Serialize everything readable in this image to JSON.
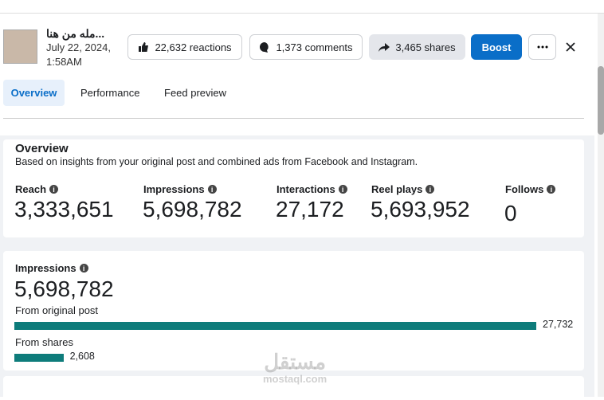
{
  "post": {
    "title": "مله من هنا...",
    "date": "July 22, 2024,",
    "time": "1:58AM"
  },
  "actions": {
    "reactions": "22,632 reactions",
    "comments": "1,373 comments",
    "shares": "3,465 shares",
    "boost": "Boost"
  },
  "tabs": [
    "Overview",
    "Performance",
    "Feed preview"
  ],
  "overview": {
    "title": "Overview",
    "subtitle": "Based on insights from your original post and combined ads from Facebook and Instagram.",
    "metrics": [
      {
        "label": "Reach",
        "value": "3,333,651"
      },
      {
        "label": "Impressions",
        "value": "5,698,782"
      },
      {
        "label": "Interactions",
        "value": "27,172"
      },
      {
        "label": "Reel plays",
        "value": "5,693,952"
      },
      {
        "label": "Follows",
        "value": "0"
      }
    ]
  },
  "impressions": {
    "title": "Impressions",
    "total": "5,698,782",
    "sources": [
      {
        "label": "From original post",
        "value": 27732,
        "value_label": "27,732"
      },
      {
        "label": "From shares",
        "value": 2608,
        "value_label": "2,608"
      }
    ]
  },
  "watermark": {
    "name": "مستقل",
    "url": "mostaql.com"
  }
}
